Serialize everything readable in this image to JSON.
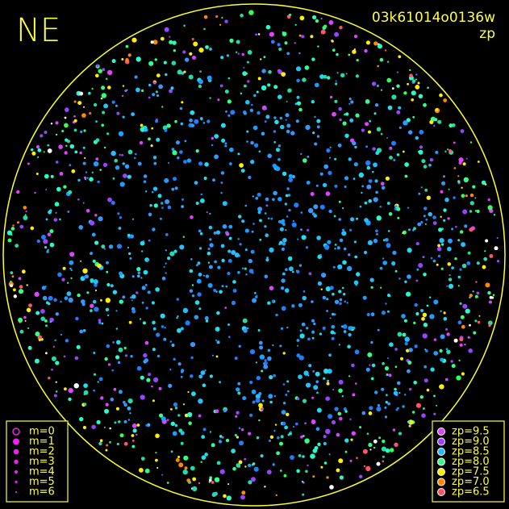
{
  "header": {
    "title": "NE",
    "frame_id": "03k61014o0136w",
    "mode": "zp"
  },
  "magnitude_legend": {
    "items": [
      "m=0",
      "m=1",
      "m=2",
      "m=3",
      "m=4",
      "m=5",
      "m=6"
    ]
  },
  "zp_legend": {
    "items": [
      {
        "label": "zp=9.5",
        "color": "#dd44ff"
      },
      {
        "label": "zp=9.0",
        "color": "#9944ff"
      },
      {
        "label": "zp=8.5",
        "color": "#22bbff"
      },
      {
        "label": "zp=8.0",
        "color": "#33ff88"
      },
      {
        "label": "zp=7.5",
        "color": "#ffee00"
      },
      {
        "label": "zp=7.0",
        "color": "#ff8800"
      },
      {
        "label": "zp=6.5",
        "color": "#ff5566"
      }
    ]
  }
}
